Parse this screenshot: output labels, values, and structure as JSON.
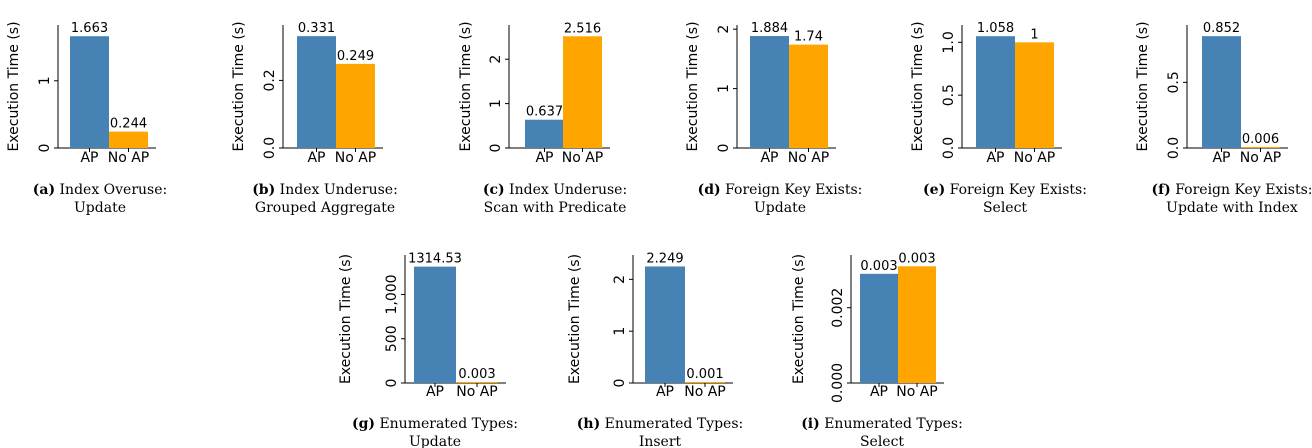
{
  "chart_data": [
    {
      "type": "bar",
      "categories": [
        "AP",
        "No AP"
      ],
      "values": [
        1.663,
        0.244
      ],
      "value_labels": [
        "1.663",
        "0.244"
      ],
      "ylabel": "Execution Time (s)",
      "ylim": [
        0,
        1.83
      ],
      "yticks": [
        0,
        1
      ],
      "ytick_labels": [
        "0",
        "1"
      ],
      "caption_label": "(a)",
      "caption_lines": [
        "Index Overuse:",
        "Update"
      ]
    },
    {
      "type": "bar",
      "categories": [
        "AP",
        "No AP"
      ],
      "values": [
        0.331,
        0.249
      ],
      "value_labels": [
        "0.331",
        "0.249"
      ],
      "ylabel": "Execution Time (s)",
      "ylim": [
        0,
        0.364
      ],
      "yticks": [
        0.0,
        0.2
      ],
      "ytick_labels": [
        "0.0",
        "0.2"
      ],
      "caption_label": "(b)",
      "caption_lines": [
        "Index Underuse:",
        "Grouped Aggregate"
      ]
    },
    {
      "type": "bar",
      "categories": [
        "AP",
        "No AP"
      ],
      "values": [
        0.637,
        2.516
      ],
      "value_labels": [
        "0.637",
        "2.516"
      ],
      "ylabel": "Execution Time (s)",
      "ylim": [
        0,
        2.77
      ],
      "yticks": [
        0,
        1,
        2
      ],
      "ytick_labels": [
        "0",
        "1",
        "2"
      ],
      "caption_label": "(c)",
      "caption_lines": [
        "Index Underuse:",
        "Scan with Predicate"
      ]
    },
    {
      "type": "bar",
      "categories": [
        "AP",
        "No AP"
      ],
      "values": [
        1.884,
        1.74
      ],
      "value_labels": [
        "1.884",
        "1.74"
      ],
      "ylabel": "Execution Time (s)",
      "ylim": [
        0,
        2.07
      ],
      "yticks": [
        0,
        1,
        2
      ],
      "ytick_labels": [
        "0",
        "1",
        "2"
      ],
      "caption_label": "(d)",
      "caption_lines": [
        "Foreign Key Exists:",
        "Update"
      ]
    },
    {
      "type": "bar",
      "categories": [
        "AP",
        "No AP"
      ],
      "values": [
        1.058,
        1.0
      ],
      "value_labels": [
        "1.058",
        "1"
      ],
      "ylabel": "Execution Time (s)",
      "ylim": [
        0,
        1.164
      ],
      "yticks": [
        0.0,
        0.5,
        1.0
      ],
      "ytick_labels": [
        "0.0",
        "0.5",
        "1.0"
      ],
      "caption_label": "(e)",
      "caption_lines": [
        "Foreign Key Exists:",
        "Select"
      ]
    },
    {
      "type": "bar",
      "categories": [
        "AP",
        "No AP"
      ],
      "values": [
        0.852,
        0.006
      ],
      "value_labels": [
        "0.852",
        "0.006"
      ],
      "ylabel": "Execution Time (s)",
      "ylim": [
        0,
        0.937
      ],
      "yticks": [
        0.0,
        0.5
      ],
      "ytick_labels": [
        "0.0",
        "0.5"
      ],
      "caption_label": "(f)",
      "caption_lines": [
        "Foreign Key Exists:",
        "Update with Index"
      ]
    },
    {
      "type": "bar",
      "categories": [
        "AP",
        "No AP"
      ],
      "values": [
        1314.53,
        0.003
      ],
      "value_labels": [
        "1314.53",
        "0.003"
      ],
      "ylabel": "Execution Time (s)",
      "ylim": [
        0,
        1446
      ],
      "yticks": [
        0,
        500,
        1000
      ],
      "ytick_labels": [
        "0",
        "500",
        "1,000"
      ],
      "caption_label": "(g)",
      "caption_lines": [
        "Enumerated Types:",
        "Update"
      ]
    },
    {
      "type": "bar",
      "categories": [
        "AP",
        "No AP"
      ],
      "values": [
        2.249,
        0.001
      ],
      "value_labels": [
        "2.249",
        "0.001"
      ],
      "ylabel": "Execution Time (s)",
      "ylim": [
        0,
        2.47
      ],
      "yticks": [
        0,
        1,
        2
      ],
      "ytick_labels": [
        "0",
        "1",
        "2"
      ],
      "caption_label": "(h)",
      "caption_lines": [
        "Enumerated Types:",
        "Insert"
      ]
    },
    {
      "type": "bar",
      "categories": [
        "AP",
        "No AP"
      ],
      "values": [
        0.0029,
        0.0031
      ],
      "value_labels": [
        "0.003",
        "0.003"
      ],
      "ylabel": "Execution Time (s)",
      "ylim": [
        0,
        0.0034
      ],
      "yticks": [
        0.0,
        0.002
      ],
      "ytick_labels": [
        "0.000",
        "0.002"
      ],
      "caption_label": "(i)",
      "caption_lines": [
        "Enumerated Types:",
        "Select"
      ]
    }
  ],
  "colors": {
    "AP": "#4682b4",
    "No AP": "#ffa500"
  }
}
